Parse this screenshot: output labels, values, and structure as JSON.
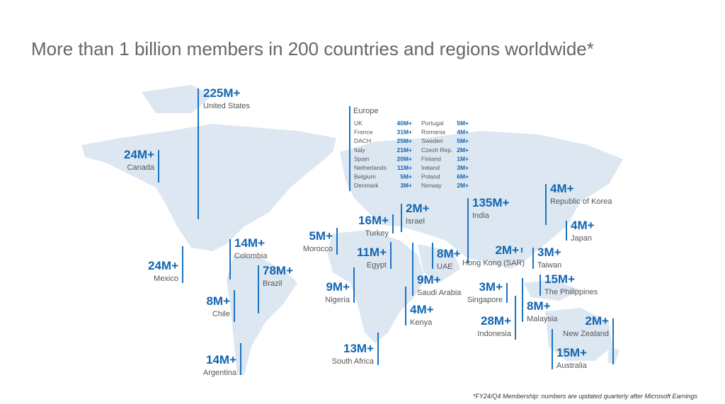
{
  "title": "More than 1 billion members in 200 countries and regions worldwide*",
  "footnote": "*FY24/Q4 Membership: numbers are updated quarterly after Microsoft Earnings",
  "regions": [
    {
      "value": "225M+",
      "label": "United States"
    },
    {
      "value": "24M+",
      "label": "Canada"
    },
    {
      "value": "24M+",
      "label": "Mexico"
    },
    {
      "value": "14M+",
      "label": "Colombia"
    },
    {
      "value": "78M+",
      "label": "Brazil"
    },
    {
      "value": "8M+",
      "label": "Chile"
    },
    {
      "value": "14M+",
      "label": "Argentina"
    },
    {
      "value": "5M+",
      "label": "Morocco"
    },
    {
      "value": "9M+",
      "label": "Nigeria"
    },
    {
      "value": "13M+",
      "label": "South Africa"
    },
    {
      "value": "11M+",
      "label": "Egypt"
    },
    {
      "value": "16M+",
      "label": "Turkey"
    },
    {
      "value": "2M+",
      "label": "Israel"
    },
    {
      "value": "9M+",
      "label": "Saudi Arabia"
    },
    {
      "value": "4M+",
      "label": "Kenya"
    },
    {
      "value": "8M+",
      "label": "UAE"
    },
    {
      "value": "135M+",
      "label": "India"
    },
    {
      "value": "2M+",
      "label": "Hong Kong (SAR)"
    },
    {
      "value": "3M+",
      "label": "Taiwan"
    },
    {
      "value": "4M+",
      "label": "Republic of Korea"
    },
    {
      "value": "4M+",
      "label": "Japan"
    },
    {
      "value": "15M+",
      "label": "The Philippines"
    },
    {
      "value": "3M+",
      "label": "Singapore"
    },
    {
      "value": "8M+",
      "label": "Malaysia"
    },
    {
      "value": "28M+",
      "label": "Indonesia"
    },
    {
      "value": "2M+",
      "label": "New Zealand"
    },
    {
      "value": "15M+",
      "label": "Australia"
    }
  ],
  "europe": {
    "title": "Europe",
    "columns": [
      [
        {
          "name": "UK",
          "value": "40M+"
        },
        {
          "name": "France",
          "value": "31M+"
        },
        {
          "name": "DACH",
          "value": "25M+"
        },
        {
          "name": "Italy",
          "value": "21M+"
        },
        {
          "name": "Spain",
          "value": "20M+"
        },
        {
          "name": "Netherlands",
          "value": "11M+"
        },
        {
          "name": "Belgium",
          "value": "5M+"
        },
        {
          "name": "Denmark",
          "value": "3M+"
        }
      ],
      [
        {
          "name": "Portugal",
          "value": "5M+"
        },
        {
          "name": "Romania",
          "value": "4M+"
        },
        {
          "name": "Sweden",
          "value": "5M+"
        },
        {
          "name": "Czech Rep.",
          "value": "2M+"
        },
        {
          "name": "Finland",
          "value": "1M+"
        },
        {
          "name": "Ireland",
          "value": "3M+"
        },
        {
          "name": "Poland",
          "value": "6M+"
        },
        {
          "name": "Norway",
          "value": "2M+"
        }
      ]
    ]
  }
}
